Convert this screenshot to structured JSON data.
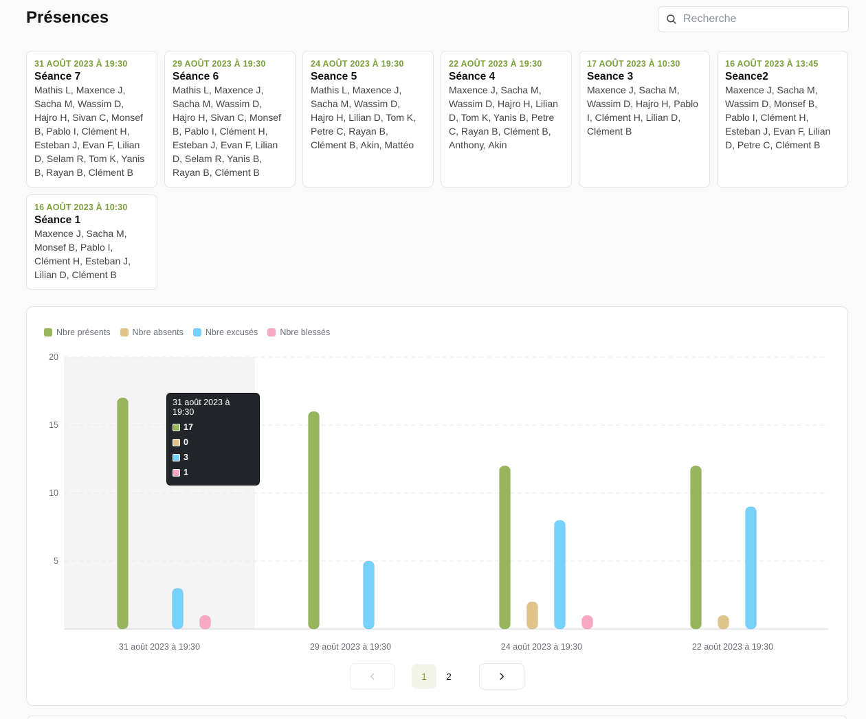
{
  "page": {
    "title": "Présences"
  },
  "search": {
    "placeholder": "Recherche",
    "value": ""
  },
  "sessions": [
    {
      "date": "31 août 2023 à 19:30",
      "title": "Séance 7",
      "attendees": "Mathis L, Maxence J, Sacha M, Wassim D, Hajro H, Sivan C, Monsef B, Pablo I, Clément H, Esteban J, Evan F, Lilian D, Selam R, Tom K, Yanis B, Rayan B, Clément B"
    },
    {
      "date": "29 août 2023 à 19:30",
      "title": "Séance 6",
      "attendees": "Mathis L, Maxence J, Sacha M, Wassim D, Hajro H, Sivan C, Monsef B, Pablo I, Clément H, Esteban J, Evan F, Lilian D, Selam R, Yanis B, Rayan B, Clément B"
    },
    {
      "date": "24 août 2023 à 19:30",
      "title": "Seance 5",
      "attendees": "Mathis L, Maxence J, Sacha M, Wassim D, Hajro H, Lilian D, Tom K, Petre C, Rayan B, Clément B, Akin, Mattéo"
    },
    {
      "date": "22 août 2023 à 19:30",
      "title": "Séance 4",
      "attendees": "Maxence J, Sacha M, Wassim D, Hajro H, Lilian D, Tom K, Yanis B, Petre C, Rayan B, Clément B, Anthony, Akin"
    },
    {
      "date": "17 août 2023 à 10:30",
      "title": "Seance 3",
      "attendees": "Maxence J, Sacha M, Wassim D, Hajro H, Pablo I, Clément H, Lilian D, Clément B"
    },
    {
      "date": "16 août 2023 à 13:45",
      "title": "Seance2",
      "attendees": "Maxence J, Sacha M, Wassim D, Monsef B, Pablo I, Clément H, Esteban J, Evan F, Lilian D, Petre C, Clément B"
    },
    {
      "date": "16 août 2023 à 10:30",
      "title": "Séance 1",
      "attendees": "Maxence J, Sacha M, Monsef B, Pablo I, Clément H, Esteban J, Lilian D, Clément B"
    }
  ],
  "chart_data": {
    "type": "bar",
    "categories": [
      "31 août 2023 à 19:30",
      "29 août 2023 à 19:30",
      "24 août 2023 à 19:30",
      "22 août 2023 à 19:30"
    ],
    "series": [
      {
        "name": "Nbre présents",
        "color": "#97b55a",
        "values": [
          17,
          16,
          12,
          12
        ]
      },
      {
        "name": "Nbre absents",
        "color": "#dfc58c",
        "values": [
          0,
          0,
          2,
          1
        ]
      },
      {
        "name": "Nbre excusés",
        "color": "#76d2fb",
        "values": [
          3,
          5,
          8,
          9
        ]
      },
      {
        "name": "Nbre blessés",
        "color": "#f9a8c4",
        "values": [
          1,
          0,
          1,
          0
        ]
      }
    ],
    "ylim": [
      0,
      20
    ],
    "yticks": [
      5,
      10,
      15,
      20
    ],
    "legend_position": "top-left",
    "grid": true,
    "highlighted_category": 0
  },
  "tooltip": {
    "title": "31 août 2023 à 19:30",
    "rows": [
      {
        "value": "17",
        "color": "#97b55a"
      },
      {
        "value": "0",
        "color": "#dfc58c"
      },
      {
        "value": "3",
        "color": "#76d2fb"
      },
      {
        "value": "1",
        "color": "#f9a8c4"
      }
    ]
  },
  "pagination": {
    "pages": [
      "1",
      "2"
    ],
    "current": "1"
  },
  "icons": {
    "search": "search-icon",
    "prev": "chevron-left-icon",
    "next": "chevron-right-icon"
  }
}
